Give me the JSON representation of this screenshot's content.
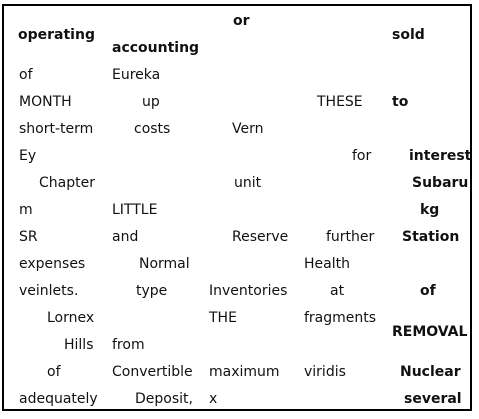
{
  "table": {
    "header": {
      "col1": "operating",
      "col2": "accounting",
      "col3": "or",
      "col5": "sold"
    },
    "rows": [
      {
        "c1": "of",
        "c2": "Eureka",
        "c3": "",
        "c4": "",
        "c5": ""
      },
      {
        "c1": "MONTH",
        "c2": "up",
        "c3": "",
        "c4": "THESE",
        "c5": "to"
      },
      {
        "c1": "short-term",
        "c2": "costs",
        "c3": "Vern",
        "c4": "",
        "c5": ""
      },
      {
        "c1": "Ey",
        "c2": "",
        "c3": "",
        "c4": "for",
        "c5": "interest"
      },
      {
        "c1": "Chapter",
        "c2": "",
        "c3": "unit",
        "c4": "",
        "c5": "Subaru"
      },
      {
        "c1": "m",
        "c2": "LITTLE",
        "c3": "",
        "c4": "",
        "c5": "kg"
      },
      {
        "c1": "SR",
        "c2": "and",
        "c3": "Reserve",
        "c4": "further",
        "c5": "Station"
      },
      {
        "c1": "expenses",
        "c2": "Normal",
        "c3": "",
        "c4": "Health",
        "c5": ""
      },
      {
        "c1": "veinlets.",
        "c2": "type",
        "c3": "Inventories",
        "c4": "at",
        "c5": "of"
      },
      {
        "c1": "Lornex",
        "c2": "",
        "c3": "THE",
        "c4": "fragments",
        "c5": "REMOVAL"
      },
      {
        "c1": "Hills",
        "c2": "from",
        "c3": "",
        "c4": "",
        "c5": ""
      },
      {
        "c1": "of",
        "c2": "Convertible",
        "c3": "maximum",
        "c4": "viridis",
        "c5": "Nuclear"
      },
      {
        "c1": "adequately",
        "c2": "Deposit,",
        "c3": "x",
        "c4": "",
        "c5": "several"
      }
    ]
  }
}
